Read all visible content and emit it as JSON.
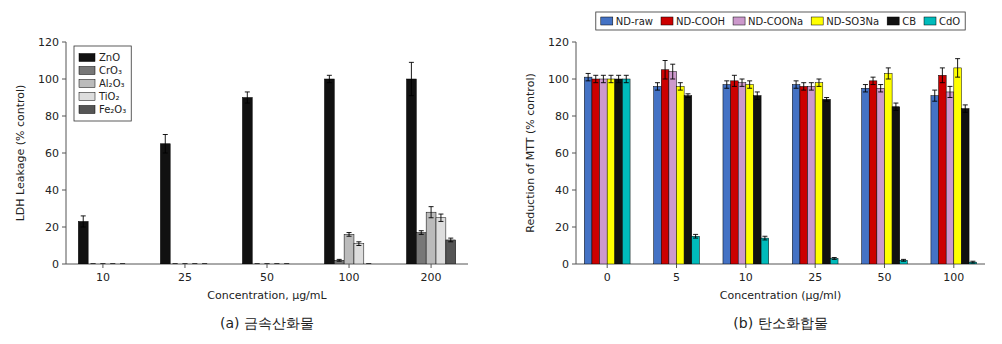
{
  "chart_data": [
    {
      "type": "bar",
      "title": "(a)  금속산화물",
      "x_label": "Concentration, μg/mL",
      "y_label": "LDH Leakage (% control)",
      "categories": [
        "10",
        "25",
        "50",
        "100",
        "200"
      ],
      "ylim": [
        0,
        120
      ],
      "yticks": [
        0,
        20,
        40,
        60,
        80,
        100,
        120
      ],
      "legend": "upper left",
      "series": [
        {
          "name": "ZnO",
          "color": "#111111",
          "values": [
            23,
            65,
            90,
            100,
            100
          ],
          "errors": [
            3,
            5,
            3,
            2,
            9
          ]
        },
        {
          "name": "CrO₃",
          "color": "#777777",
          "values": [
            0,
            0,
            0,
            2,
            17
          ],
          "errors": [
            0,
            0,
            0,
            0.5,
            1
          ]
        },
        {
          "name": "Al₂O₃",
          "color": "#bbbbbb",
          "values": [
            0,
            0,
            0,
            16,
            28
          ],
          "errors": [
            0,
            0,
            0,
            1,
            3
          ]
        },
        {
          "name": "TiO₂",
          "color": "#dddddd",
          "values": [
            0,
            0,
            0,
            11,
            25
          ],
          "errors": [
            0,
            0,
            0,
            1,
            2
          ]
        },
        {
          "name": "Fe₂O₃",
          "color": "#555555",
          "values": [
            0,
            0,
            0,
            0,
            13
          ],
          "errors": [
            0,
            0,
            0,
            0,
            1
          ]
        }
      ]
    },
    {
      "type": "bar",
      "title": "(b)  탄소화합물",
      "x_label": "Concentration (μg/ml)",
      "y_label": "Reduction of MTT (% control)",
      "categories": [
        "0",
        "5",
        "10",
        "25",
        "50",
        "100"
      ],
      "ylim": [
        0,
        120
      ],
      "yticks": [
        0,
        20,
        40,
        60,
        80,
        100,
        120
      ],
      "legend": "top",
      "series": [
        {
          "name": "ND-raw",
          "color": "#4472c4",
          "values": [
            101,
            96,
            97,
            97,
            95,
            91
          ],
          "errors": [
            2,
            2,
            2,
            2,
            2,
            3
          ]
        },
        {
          "name": "ND-COOH",
          "color": "#cc0000",
          "values": [
            100,
            105,
            99,
            96,
            99,
            102
          ],
          "errors": [
            2,
            5,
            3,
            2,
            2,
            4
          ]
        },
        {
          "name": "ND-COONa",
          "color": "#cc99cc",
          "values": [
            100,
            104,
            98,
            96,
            95,
            93
          ],
          "errors": [
            2,
            4,
            2,
            2,
            2,
            3
          ]
        },
        {
          "name": "ND-SO3Na",
          "color": "#ffff00",
          "values": [
            100,
            96,
            97,
            98,
            103,
            106
          ],
          "errors": [
            2,
            2,
            2,
            2,
            3,
            5
          ]
        },
        {
          "name": "CB",
          "color": "#111111",
          "values": [
            100,
            91,
            91,
            89,
            85,
            84
          ],
          "errors": [
            2,
            1,
            2,
            1,
            2,
            2
          ]
        },
        {
          "name": "CdO",
          "color": "#00bbbb",
          "values": [
            100,
            15,
            14,
            3,
            2,
            1
          ],
          "errors": [
            2,
            1,
            1,
            0.5,
            0.5,
            0.5
          ]
        }
      ]
    }
  ]
}
